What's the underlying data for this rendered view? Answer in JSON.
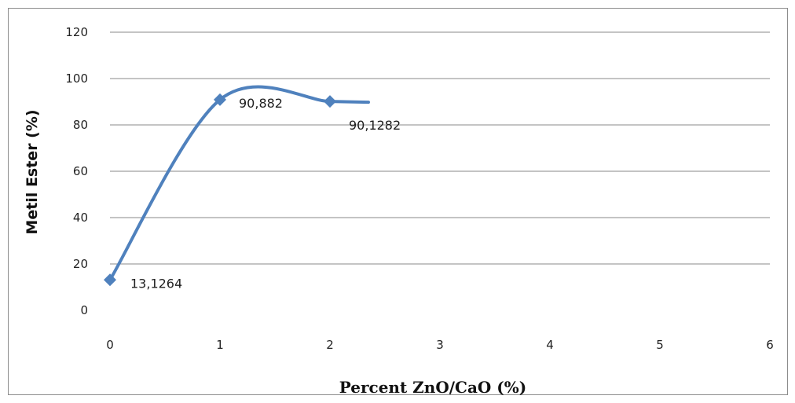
{
  "chart_data": {
    "type": "line",
    "title": "",
    "xlabel": "Percent ZnO/CaO (%)",
    "ylabel": "Metil Ester (%)",
    "xlim": [
      0,
      6
    ],
    "ylim": [
      0,
      120
    ],
    "x_ticks": [
      "0",
      "1",
      "2",
      "3",
      "4",
      "5",
      "6"
    ],
    "y_ticks": [
      "0",
      "20",
      "40",
      "60",
      "80",
      "100",
      "120"
    ],
    "grid": true,
    "smoothed": true,
    "series": [
      {
        "color": "#4f81bd",
        "marker": "diamond",
        "x": [
          0,
          1,
          2
        ],
        "values": [
          13.1264,
          90.882,
          90.1282
        ],
        "labels": [
          "13,1264",
          "90,882",
          "90,1282"
        ],
        "tail_end_x": 2.35,
        "tail_end_y": 89.8
      }
    ]
  }
}
